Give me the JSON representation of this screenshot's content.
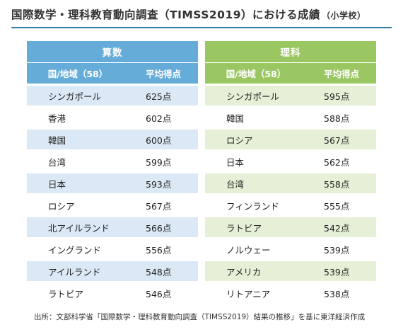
{
  "title": "国際数学・理科教育動向調査（TIMSS2019）における成績",
  "title_sub": "（小学校）",
  "math": {
    "header": "算数",
    "col_country": "国/地域（58）",
    "col_score": "平均得点",
    "rows": [
      {
        "country": "シンガポール",
        "score": "625点"
      },
      {
        "country": "香港",
        "score": "602点"
      },
      {
        "country": "韓国",
        "score": "600点"
      },
      {
        "country": "台湾",
        "score": "599点"
      },
      {
        "country": "日本",
        "score": "593点"
      },
      {
        "country": "ロシア",
        "score": "567点"
      },
      {
        "country": "北アイルランド",
        "score": "566点"
      },
      {
        "country": "イングランド",
        "score": "556点"
      },
      {
        "country": "アイルランド",
        "score": "548点"
      },
      {
        "country": "ラトビア",
        "score": "546点"
      }
    ]
  },
  "science": {
    "header": "理科",
    "col_country": "国/地域（58）",
    "col_score": "平均得点",
    "rows": [
      {
        "country": "シンガポール",
        "score": "595点"
      },
      {
        "country": "韓国",
        "score": "588点"
      },
      {
        "country": "ロシア",
        "score": "567点"
      },
      {
        "country": "日本",
        "score": "562点"
      },
      {
        "country": "台湾",
        "score": "558点"
      },
      {
        "country": "フィンランド",
        "score": "555点"
      },
      {
        "country": "ラトビア",
        "score": "542点"
      },
      {
        "country": "ノルウェー",
        "score": "539点"
      },
      {
        "country": "アメリカ",
        "score": "539点"
      },
      {
        "country": "リトアニア",
        "score": "538点"
      }
    ]
  },
  "source": "出所：文部科学省「国際数学・理科教育動向調査（TIMSS2019）結果の推移」を基に東洋経済作成",
  "colors": {
    "title_rule": "#2f7fa3",
    "math_header": "#66acd8",
    "math_stripe": "#dbe9f6",
    "science_header": "#9bc763",
    "science_stripe": "#e6f0d7"
  }
}
